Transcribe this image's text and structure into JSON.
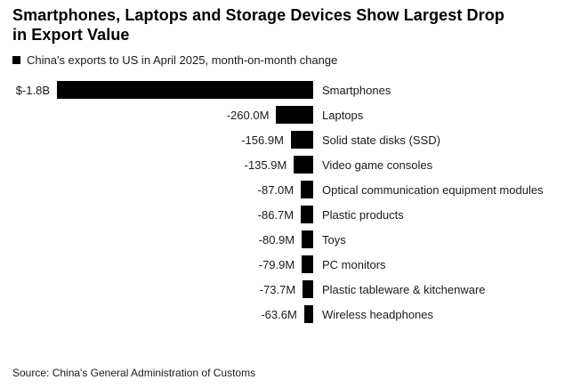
{
  "title": {
    "line1": "Smartphones, Laptops and Storage Devices Show Largest Drop",
    "line2": "in Export Value"
  },
  "legend": {
    "marker_color": "#000000",
    "label": "China's exports to US in April 2025, month-on-month change"
  },
  "source": "Source: China's General Administration of Customs",
  "chart_data": {
    "type": "bar",
    "orientation": "horizontal",
    "bar_color": "#000000",
    "title": "Smartphones, Laptops and Storage Devices Show Largest Drop in Export Value",
    "subtitle": "China's exports to US in April 2025, month-on-month change",
    "unit": "USD, month-on-month change",
    "xlim_millions": [
      -1800,
      0
    ],
    "legend_position": "top-left",
    "grid": false,
    "categories": [
      "Smartphones",
      "Laptops",
      "Solid state disks (SSD)",
      "Video game consoles",
      "Optical communication equipment modules",
      "Plastic products",
      "Toys",
      "PC monitors",
      "Plastic tableware & kitchenware",
      "Wireless headphones"
    ],
    "values_millions": [
      -1800,
      -260.0,
      -156.9,
      -135.9,
      -87.0,
      -86.7,
      -80.9,
      -79.9,
      -73.7,
      -63.6
    ],
    "value_labels": [
      "$-1.8B",
      "-260.0M",
      "-156.9M",
      "-135.9M",
      "-87.0M",
      "-86.7M",
      "-80.9M",
      "-79.9M",
      "-73.7M",
      "-63.6M"
    ]
  }
}
